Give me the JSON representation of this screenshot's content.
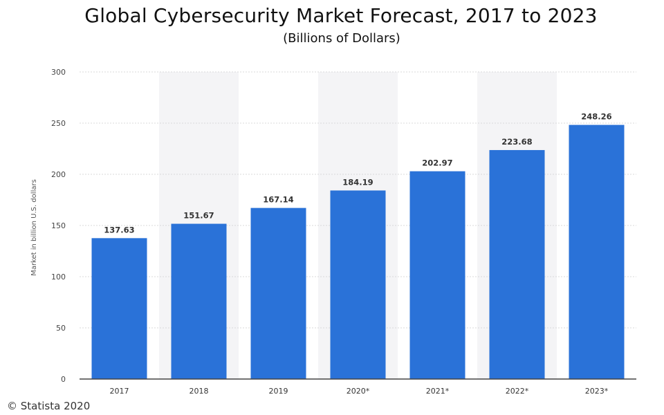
{
  "title": "Global Cybersecurity Market Forecast, 2017 to 2023",
  "subtitle": "(Billions of Dollars)",
  "footer": "© Statista 2020",
  "colors": {
    "bar": "#2a72d8",
    "band": "#f4f4f6",
    "grid": "#d9d9d9",
    "axis": "#444444"
  },
  "chart_data": {
    "type": "bar",
    "title": "Global Cybersecurity Market Forecast, 2017 to 2023",
    "subtitle": "(Billions of Dollars)",
    "categories": [
      "2017",
      "2018",
      "2019",
      "2020*",
      "2021*",
      "2022*",
      "2023*"
    ],
    "values": [
      137.63,
      151.67,
      167.14,
      184.19,
      202.97,
      223.68,
      248.26
    ],
    "value_labels": [
      "137.63",
      "151.67",
      "167.14",
      "184.19",
      "202.97",
      "223.68",
      "248.26"
    ],
    "xlabel": "",
    "ylabel": "Market in billion U.S. dollars",
    "ylim": [
      0,
      300
    ],
    "yticks": [
      "0",
      "50",
      "100",
      "150",
      "200",
      "250",
      "300"
    ],
    "grid": true,
    "legend": "none"
  }
}
